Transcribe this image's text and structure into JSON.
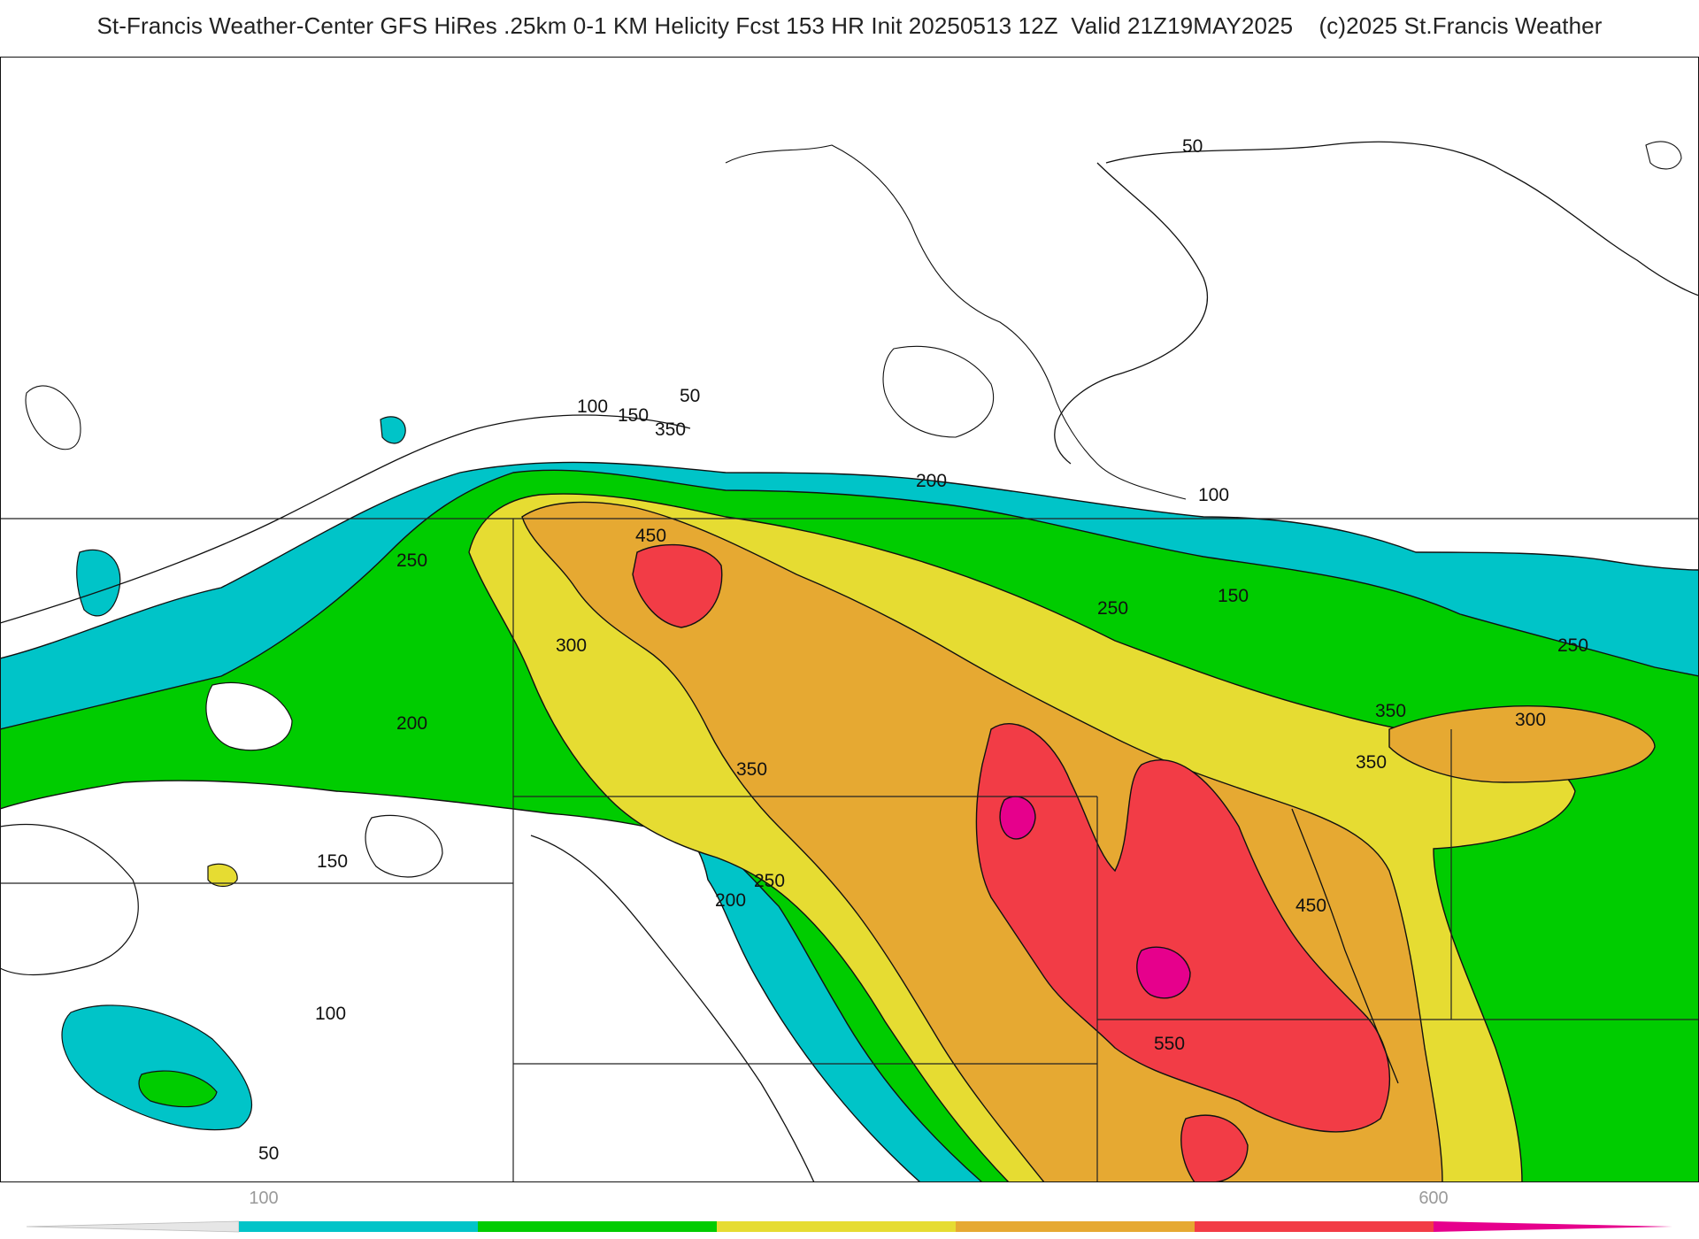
{
  "header": {
    "title": "St-Francis Weather-Center GFS HiRes .25km 0-1 KM Helicity Fcst 153 HR Init 20250513 12Z  Valid 21Z19MAY2025    (c)2025 St.Francis Weather"
  },
  "map": {
    "contour_labels": [
      "50",
      "100",
      "150",
      "350",
      "200",
      "450",
      "250",
      "300",
      "200",
      "350",
      "150",
      "250",
      "200",
      "100",
      "50",
      "50",
      "100",
      "150",
      "250",
      "250",
      "350",
      "300",
      "350",
      "450",
      "550"
    ]
  },
  "colorbar": {
    "labels": [
      "100",
      "600"
    ],
    "colors": [
      "#e6e6e6",
      "#00c4c8",
      "#00cc00",
      "#e6dc32",
      "#e6a932",
      "#f23c46",
      "#e6008c"
    ]
  }
}
